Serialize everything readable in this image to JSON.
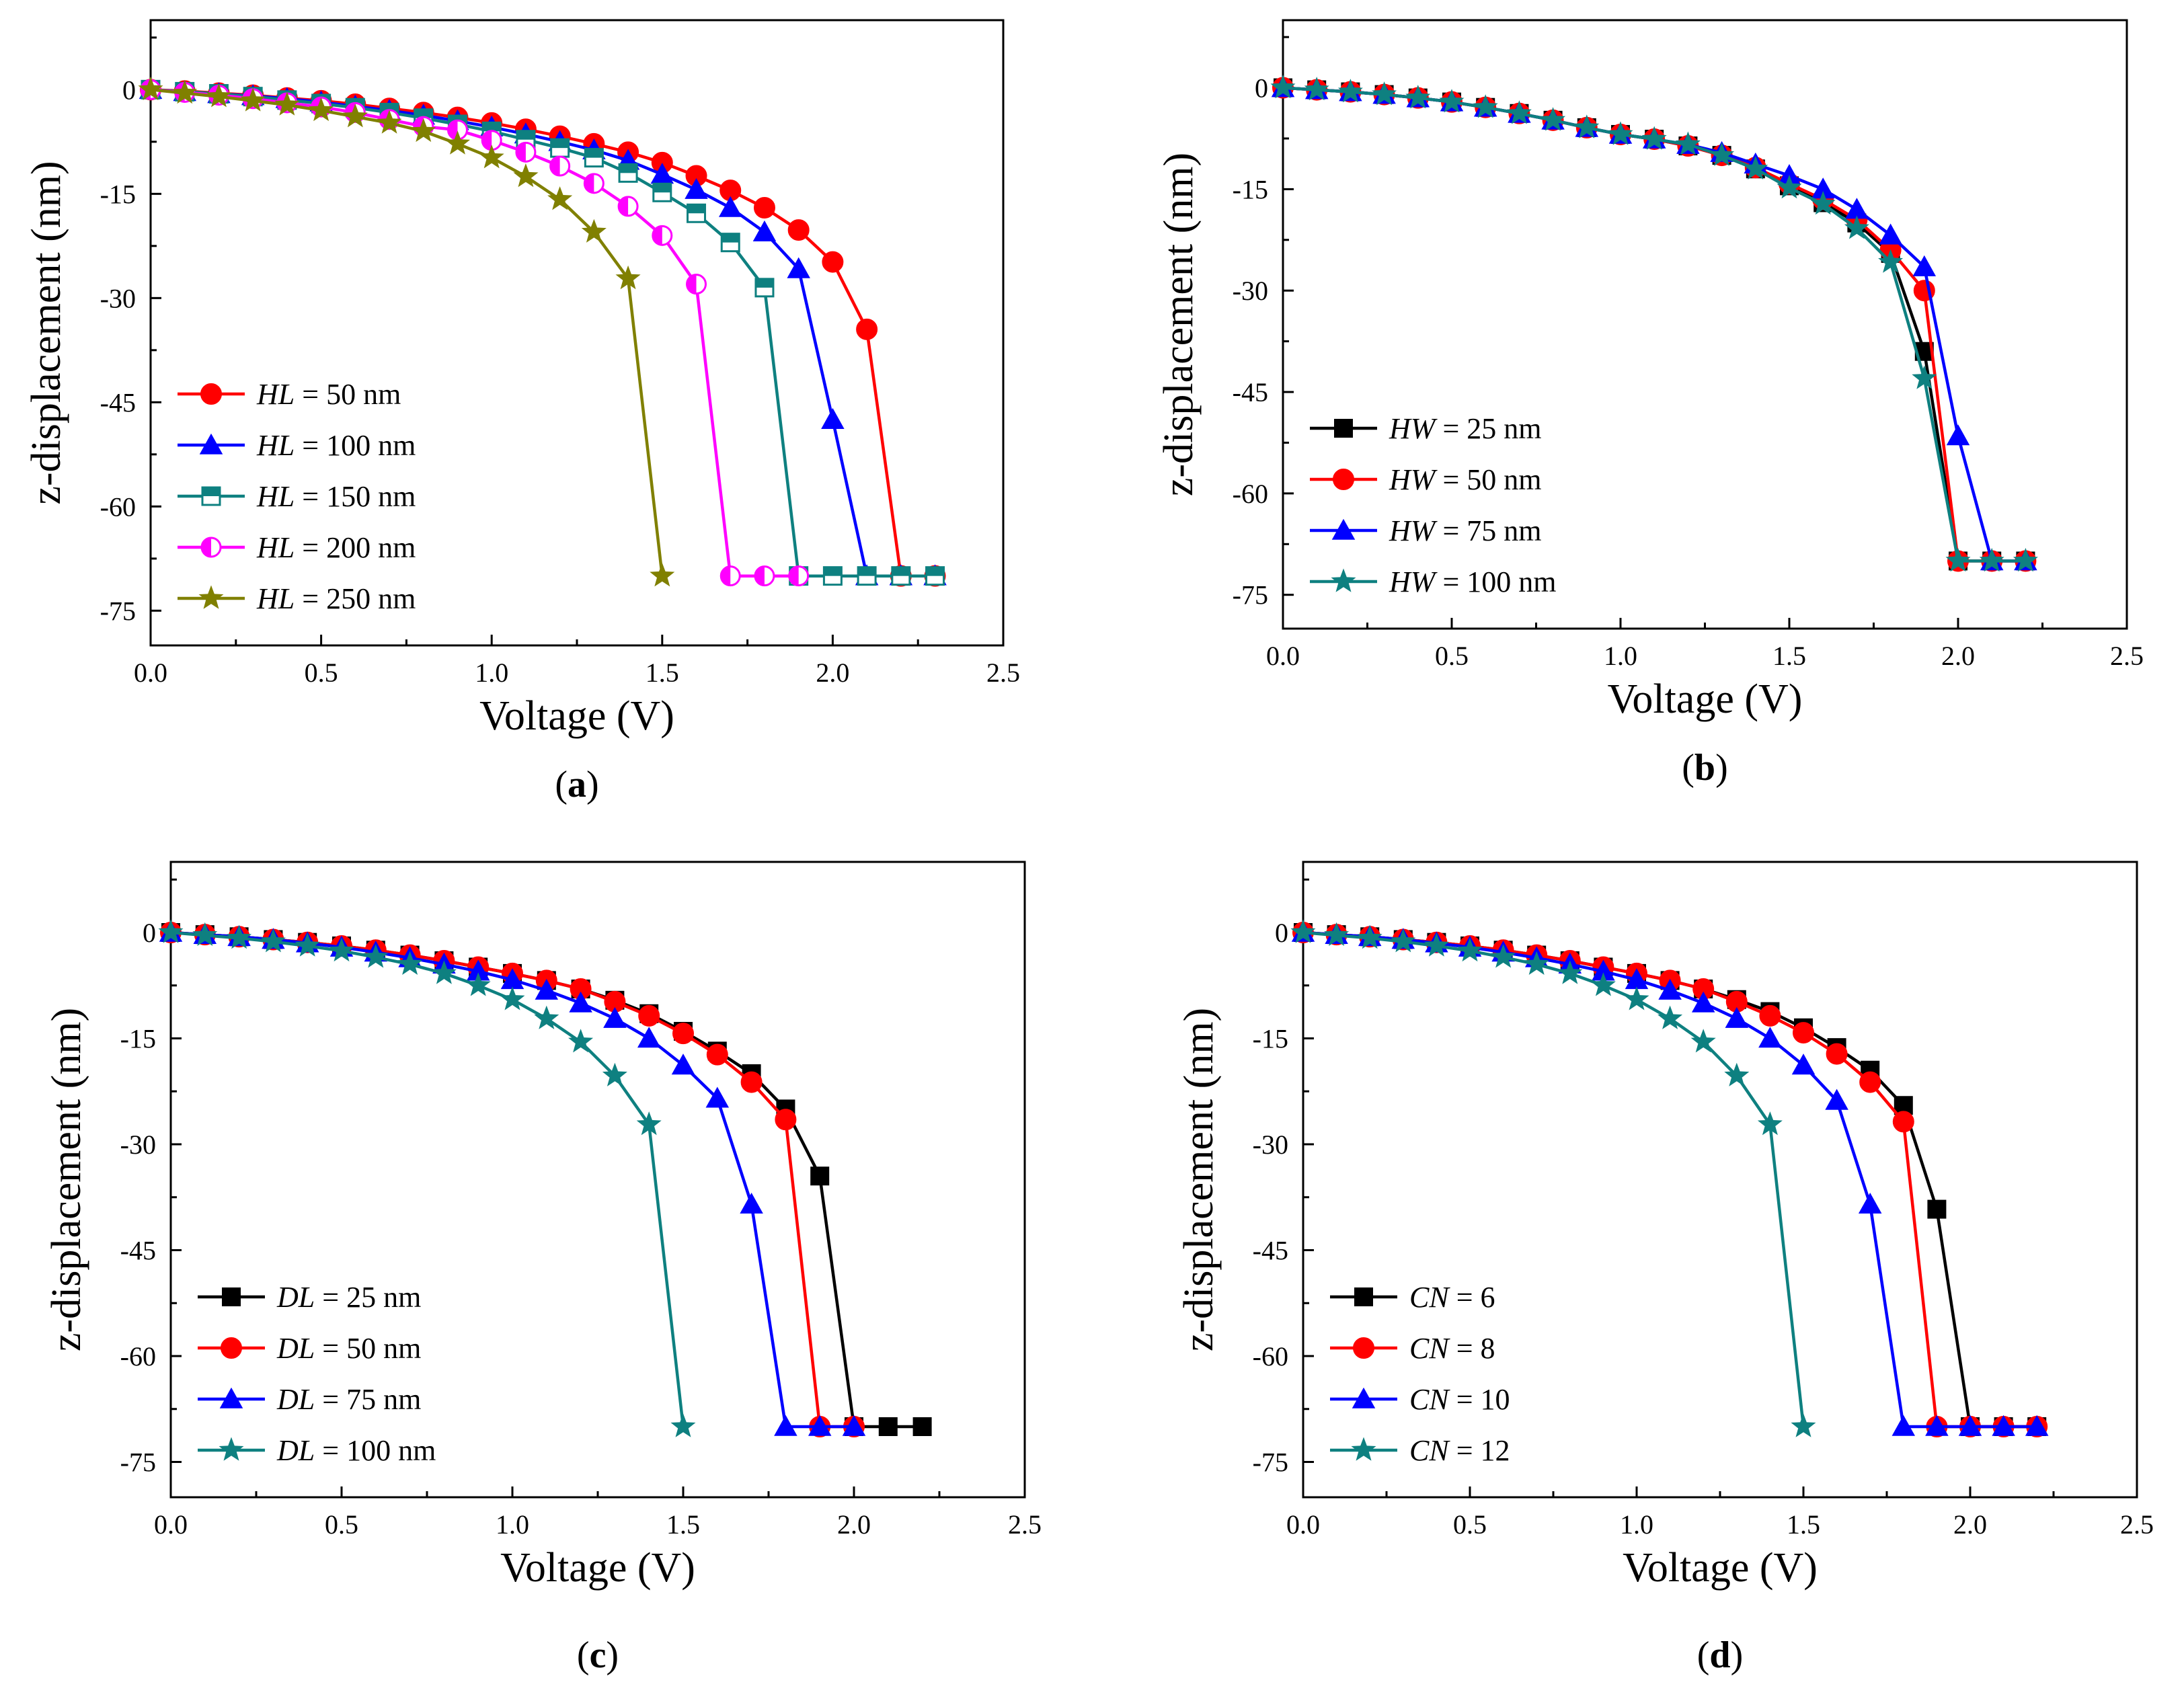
{
  "chart_data": [
    {
      "type": "line",
      "panel_label": "a",
      "xlabel": "Voltage (V)",
      "ylabel": "z-displacement (nm)",
      "xlim": [
        0,
        2.5
      ],
      "ylim": [
        -80,
        10
      ],
      "xticks": [
        "0.0",
        "0.5",
        "1.0",
        "1.5",
        "2.0",
        "2.5"
      ],
      "yticks": [
        "0",
        "-15",
        "-30",
        "-45",
        "-60",
        "-75"
      ],
      "legend_position": "lower-left",
      "series": [
        {
          "name": "HL = 50 nm",
          "var": "HL",
          "rest": " = 50 nm",
          "color": "#ff0000",
          "marker": "circle",
          "x": [
            0,
            0.1,
            0.2,
            0.3,
            0.4,
            0.5,
            0.6,
            0.7,
            0.8,
            0.9,
            1.0,
            1.1,
            1.2,
            1.3,
            1.4,
            1.5,
            1.6,
            1.7,
            1.8,
            1.9,
            2.0,
            2.1,
            2.2,
            2.3
          ],
          "y": [
            0,
            -0.2,
            -0.5,
            -0.8,
            -1.2,
            -1.6,
            -2.1,
            -2.7,
            -3.3,
            -4.0,
            -4.8,
            -5.7,
            -6.7,
            -7.8,
            -9.0,
            -10.5,
            -12.4,
            -14.5,
            -17.0,
            -20.2,
            -24.8,
            -34.5,
            -70,
            -70
          ]
        },
        {
          "name": "HL = 100 nm",
          "var": "HL",
          "rest": " = 100 nm",
          "color": "#0000ff",
          "marker": "triangle",
          "x": [
            0,
            0.1,
            0.2,
            0.3,
            0.4,
            0.5,
            0.6,
            0.7,
            0.8,
            0.9,
            1.0,
            1.1,
            1.2,
            1.3,
            1.4,
            1.5,
            1.6,
            1.7,
            1.8,
            1.9,
            2.0,
            2.1,
            2.2,
            2.3
          ],
          "y": [
            0,
            -0.3,
            -0.6,
            -0.9,
            -1.3,
            -1.8,
            -2.4,
            -3.0,
            -3.7,
            -4.5,
            -5.4,
            -6.4,
            -7.5,
            -8.7,
            -10.2,
            -12.2,
            -14.4,
            -17.0,
            -20.5,
            -25.8,
            -47.5,
            -70,
            -70,
            -70
          ]
        },
        {
          "name": "HL = 150 nm",
          "var": "HL",
          "rest": " = 150 nm",
          "color": "#0e8080",
          "marker": "square-half",
          "x": [
            0,
            0.1,
            0.2,
            0.3,
            0.4,
            0.5,
            0.6,
            0.7,
            0.8,
            0.9,
            1.0,
            1.1,
            1.2,
            1.3,
            1.4,
            1.5,
            1.6,
            1.7,
            1.8,
            1.9,
            2.0,
            2.1,
            2.2,
            2.3
          ],
          "y": [
            0,
            -0.3,
            -0.6,
            -1.0,
            -1.5,
            -2.0,
            -2.6,
            -3.3,
            -4.1,
            -5.0,
            -6.0,
            -7.2,
            -8.4,
            -9.8,
            -12.0,
            -14.8,
            -17.8,
            -22.0,
            -28.5,
            -70,
            -70,
            -70,
            -70,
            -70
          ]
        },
        {
          "name": "HL = 200 nm",
          "var": "HL",
          "rest": " = 200 nm",
          "color": "#ff00ff",
          "marker": "circle-half",
          "x": [
            0,
            0.1,
            0.2,
            0.3,
            0.4,
            0.5,
            0.6,
            0.7,
            0.8,
            0.9,
            1.0,
            1.1,
            1.2,
            1.3,
            1.4,
            1.5,
            1.6,
            1.7,
            1.8,
            1.9
          ],
          "y": [
            0,
            -0.4,
            -0.8,
            -1.3,
            -1.9,
            -2.5,
            -3.3,
            -4.3,
            -5.3,
            -5.8,
            -7.3,
            -9.0,
            -11.0,
            -13.5,
            -16.8,
            -21.0,
            -28.0,
            -70,
            -70,
            -70
          ]
        },
        {
          "name": "HL = 250 nm",
          "var": "HL",
          "rest": " = 250 nm",
          "color": "#808000",
          "marker": "star",
          "x": [
            0,
            0.1,
            0.2,
            0.3,
            0.4,
            0.5,
            0.6,
            0.7,
            0.8,
            0.9,
            1.0,
            1.1,
            1.2,
            1.3,
            1.4,
            1.5
          ],
          "y": [
            0,
            -0.5,
            -1.0,
            -1.6,
            -2.2,
            -3.0,
            -3.9,
            -4.8,
            -6.0,
            -7.8,
            -9.8,
            -12.5,
            -15.8,
            -20.5,
            -27.2,
            -70
          ]
        }
      ]
    },
    {
      "type": "line",
      "panel_label": "b",
      "xlabel": "Voltage (V)",
      "ylabel": "z-displacement (nm)",
      "xlim": [
        0,
        2.5
      ],
      "ylim": [
        -80,
        10
      ],
      "xticks": [
        "0.0",
        "0.5",
        "1.0",
        "1.5",
        "2.0",
        "2.5"
      ],
      "yticks": [
        "0",
        "-15",
        "-30",
        "-45",
        "-60",
        "-75"
      ],
      "legend_position": "lower-left",
      "series": [
        {
          "name": "HW = 25 nm",
          "var": "HW",
          "rest": " = 25 nm",
          "color": "#000000",
          "marker": "square",
          "x": [
            0,
            0.1,
            0.2,
            0.3,
            0.4,
            0.5,
            0.6,
            0.7,
            0.8,
            0.9,
            1.0,
            1.1,
            1.2,
            1.3,
            1.4,
            1.5,
            1.6,
            1.7,
            1.8,
            1.9,
            2.0,
            2.1,
            2.2
          ],
          "y": [
            0,
            -0.3,
            -0.6,
            -1.0,
            -1.5,
            -2.1,
            -2.9,
            -3.8,
            -4.8,
            -5.9,
            -6.9,
            -7.6,
            -8.6,
            -10.0,
            -12.0,
            -14.5,
            -17.0,
            -20.0,
            -24.5,
            -39.0,
            -70,
            -70,
            -70
          ]
        },
        {
          "name": "HW = 50 nm",
          "var": "HW",
          "rest": " = 50 nm",
          "color": "#ff0000",
          "marker": "circle",
          "x": [
            0,
            0.1,
            0.2,
            0.3,
            0.4,
            0.5,
            0.6,
            0.7,
            0.8,
            0.9,
            1.0,
            1.1,
            1.2,
            1.3,
            1.4,
            1.5,
            1.6,
            1.7,
            1.8,
            1.9,
            2.0,
            2.1,
            2.2
          ],
          "y": [
            0,
            -0.3,
            -0.6,
            -1.0,
            -1.5,
            -2.1,
            -2.9,
            -3.8,
            -4.8,
            -5.9,
            -6.9,
            -7.6,
            -8.6,
            -10.0,
            -11.8,
            -14.2,
            -16.5,
            -19.5,
            -24.0,
            -30.0,
            -70,
            -70,
            -70
          ]
        },
        {
          "name": "HW = 75 nm",
          "var": "HW",
          "rest": " = 75 nm",
          "color": "#0000ff",
          "marker": "triangle",
          "x": [
            0,
            0.1,
            0.2,
            0.3,
            0.4,
            0.5,
            0.6,
            0.7,
            0.8,
            0.9,
            1.0,
            1.1,
            1.2,
            1.3,
            1.4,
            1.5,
            1.6,
            1.7,
            1.8,
            1.9,
            2.0,
            2.1,
            2.2
          ],
          "y": [
            0,
            -0.3,
            -0.6,
            -1.0,
            -1.5,
            -2.1,
            -2.9,
            -3.8,
            -4.8,
            -5.9,
            -6.9,
            -7.6,
            -8.4,
            -9.6,
            -11.3,
            -13.0,
            -15.0,
            -18.0,
            -21.8,
            -26.5,
            -51.5,
            -70,
            -70
          ]
        },
        {
          "name": "HW = 100 nm",
          "var": "HW",
          "rest": " = 100 nm",
          "color": "#0e8080",
          "marker": "star",
          "x": [
            0,
            0.1,
            0.2,
            0.3,
            0.4,
            0.5,
            0.6,
            0.7,
            0.8,
            0.9,
            1.0,
            1.1,
            1.2,
            1.3,
            1.4,
            1.5,
            1.6,
            1.7,
            1.8,
            1.9,
            2.0,
            2.1,
            2.2
          ],
          "y": [
            0,
            -0.3,
            -0.6,
            -1.0,
            -1.5,
            -2.1,
            -2.9,
            -3.8,
            -4.8,
            -5.9,
            -6.9,
            -7.6,
            -8.4,
            -10.0,
            -12.0,
            -14.8,
            -17.2,
            -20.8,
            -25.8,
            -43.0,
            -70,
            -70,
            -70
          ]
        }
      ]
    },
    {
      "type": "line",
      "panel_label": "c",
      "xlabel": "Voltage (V)",
      "ylabel": "z-displacement (nm)",
      "xlim": [
        0,
        2.5
      ],
      "ylim": [
        -80,
        10
      ],
      "xticks": [
        "0.0",
        "0.5",
        "1.0",
        "1.5",
        "2.0",
        "2.5"
      ],
      "yticks": [
        "0",
        "-15",
        "-30",
        "-45",
        "-60",
        "-75"
      ],
      "legend_position": "lower-left",
      "series": [
        {
          "name": "DL = 25 nm",
          "var": "DL",
          "rest": " = 25 nm",
          "color": "#000000",
          "marker": "square",
          "x": [
            0,
            0.1,
            0.2,
            0.3,
            0.4,
            0.5,
            0.6,
            0.7,
            0.8,
            0.9,
            1.0,
            1.1,
            1.2,
            1.3,
            1.4,
            1.5,
            1.6,
            1.7,
            1.8,
            1.9,
            2.0,
            2.1,
            2.2
          ],
          "y": [
            0,
            -0.3,
            -0.6,
            -1.0,
            -1.4,
            -1.9,
            -2.5,
            -3.2,
            -4.0,
            -4.9,
            -5.8,
            -6.8,
            -8.0,
            -9.6,
            -11.5,
            -14.0,
            -16.8,
            -20.0,
            -25.0,
            -34.5,
            -70,
            -70,
            -70
          ]
        },
        {
          "name": "DL = 50 nm",
          "var": "DL",
          "rest": " = 50 nm",
          "color": "#ff0000",
          "marker": "circle",
          "x": [
            0,
            0.1,
            0.2,
            0.3,
            0.4,
            0.5,
            0.6,
            0.7,
            0.8,
            0.9,
            1.0,
            1.1,
            1.2,
            1.3,
            1.4,
            1.5,
            1.6,
            1.7,
            1.8,
            1.9,
            2.0
          ],
          "y": [
            0,
            -0.3,
            -0.6,
            -1.0,
            -1.4,
            -1.9,
            -2.5,
            -3.2,
            -4.0,
            -4.9,
            -5.8,
            -6.8,
            -8.0,
            -9.8,
            -11.8,
            -14.3,
            -17.3,
            -21.2,
            -26.5,
            -70,
            -70
          ]
        },
        {
          "name": "DL = 75 nm",
          "var": "DL",
          "rest": " = 75 nm",
          "color": "#0000ff",
          "marker": "triangle",
          "x": [
            0,
            0.1,
            0.2,
            0.3,
            0.4,
            0.5,
            0.6,
            0.7,
            0.8,
            0.9,
            1.0,
            1.1,
            1.2,
            1.3,
            1.4,
            1.5,
            1.6,
            1.7,
            1.8,
            1.9,
            2.0
          ],
          "y": [
            0,
            -0.3,
            -0.6,
            -1.0,
            -1.5,
            -2.1,
            -2.8,
            -3.6,
            -4.5,
            -5.5,
            -6.7,
            -8.2,
            -10.0,
            -12.2,
            -15.0,
            -18.8,
            -23.5,
            -38.5,
            -70,
            -70,
            -70
          ]
        },
        {
          "name": "DL = 100 nm",
          "var": "DL",
          "rest": " = 100 nm",
          "color": "#0e8080",
          "marker": "star",
          "x": [
            0,
            0.1,
            0.2,
            0.3,
            0.4,
            0.5,
            0.6,
            0.7,
            0.8,
            0.9,
            1.0,
            1.1,
            1.2,
            1.3,
            1.4,
            1.5
          ],
          "y": [
            0,
            -0.4,
            -0.8,
            -1.3,
            -1.9,
            -2.6,
            -3.5,
            -4.5,
            -5.8,
            -7.5,
            -9.5,
            -12.2,
            -15.5,
            -20.3,
            -27.2,
            -70
          ]
        }
      ]
    },
    {
      "type": "line",
      "panel_label": "d",
      "xlabel": "Voltage (V)",
      "ylabel": "z-displacement (nm)",
      "xlim": [
        0,
        2.5
      ],
      "ylim": [
        -80,
        10
      ],
      "xticks": [
        "0.0",
        "0.5",
        "1.0",
        "1.5",
        "2.0",
        "2.5"
      ],
      "yticks": [
        "0",
        "-15",
        "-30",
        "-45",
        "-60",
        "-75"
      ],
      "legend_position": "lower-left",
      "series": [
        {
          "name": "CN = 6",
          "var": "CN",
          "rest": " = 6",
          "color": "#000000",
          "marker": "square",
          "x": [
            0,
            0.1,
            0.2,
            0.3,
            0.4,
            0.5,
            0.6,
            0.7,
            0.8,
            0.9,
            1.0,
            1.1,
            1.2,
            1.3,
            1.4,
            1.5,
            1.6,
            1.7,
            1.8,
            1.9,
            2.0,
            2.1,
            2.2
          ],
          "y": [
            0,
            -0.3,
            -0.6,
            -1.0,
            -1.4,
            -1.9,
            -2.5,
            -3.2,
            -4.0,
            -4.9,
            -5.8,
            -6.8,
            -8.0,
            -9.5,
            -11.2,
            -13.5,
            -16.3,
            -19.5,
            -24.5,
            -39.2,
            -70,
            -70,
            -70
          ]
        },
        {
          "name": "CN = 8",
          "var": "CN",
          "rest": " = 8",
          "color": "#ff0000",
          "marker": "circle",
          "x": [
            0,
            0.1,
            0.2,
            0.3,
            0.4,
            0.5,
            0.6,
            0.7,
            0.8,
            0.9,
            1.0,
            1.1,
            1.2,
            1.3,
            1.4,
            1.5,
            1.6,
            1.7,
            1.8,
            1.9,
            2.0,
            2.1,
            2.2
          ],
          "y": [
            0,
            -0.3,
            -0.6,
            -1.0,
            -1.4,
            -1.9,
            -2.5,
            -3.2,
            -4.0,
            -4.9,
            -5.8,
            -6.8,
            -8.0,
            -9.8,
            -11.8,
            -14.2,
            -17.2,
            -21.2,
            -26.8,
            -70,
            -70,
            -70,
            -70
          ]
        },
        {
          "name": "CN = 10",
          "var": "CN",
          "rest": " = 10",
          "color": "#0000ff",
          "marker": "triangle",
          "x": [
            0,
            0.1,
            0.2,
            0.3,
            0.4,
            0.5,
            0.6,
            0.7,
            0.8,
            0.9,
            1.0,
            1.1,
            1.2,
            1.3,
            1.4,
            1.5,
            1.6,
            1.7,
            1.8,
            1.9,
            2.0,
            2.1,
            2.2
          ],
          "y": [
            0,
            -0.3,
            -0.6,
            -1.0,
            -1.5,
            -2.1,
            -2.8,
            -3.6,
            -4.5,
            -5.5,
            -6.7,
            -8.2,
            -10.0,
            -12.2,
            -15.0,
            -18.8,
            -23.8,
            -38.5,
            -70,
            -70,
            -70,
            -70,
            -70
          ]
        },
        {
          "name": "CN = 12",
          "var": "CN",
          "rest": " = 12",
          "color": "#0e8080",
          "marker": "star",
          "x": [
            0,
            0.1,
            0.2,
            0.3,
            0.4,
            0.5,
            0.6,
            0.7,
            0.8,
            0.9,
            1.0,
            1.1,
            1.2,
            1.3,
            1.4,
            1.5
          ],
          "y": [
            0,
            -0.4,
            -0.8,
            -1.3,
            -1.9,
            -2.6,
            -3.5,
            -4.5,
            -5.8,
            -7.5,
            -9.5,
            -12.2,
            -15.5,
            -20.3,
            -27.2,
            -70
          ]
        }
      ]
    }
  ]
}
